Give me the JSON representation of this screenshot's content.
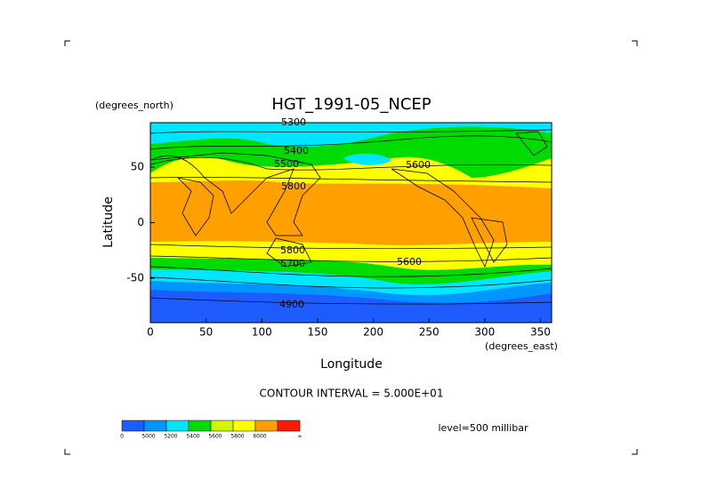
{
  "title": "HGT_1991-05_NCEP",
  "y_axis": {
    "unit": "(degrees_north)",
    "label": "Latitude",
    "ticks": [
      50,
      0,
      -50
    ]
  },
  "x_axis": {
    "unit": "(degrees_east)",
    "label": "Longitude",
    "ticks": [
      0,
      50,
      100,
      150,
      200,
      250,
      300,
      350
    ]
  },
  "contour_interval": "CONTOUR INTERVAL = 5.000E+01",
  "level": "level=500 millibar",
  "contour_labels": [
    5300,
    5400,
    5500,
    5600,
    5800,
    5800,
    5700,
    5600,
    4900
  ],
  "colorbar": {
    "labels": [
      "0",
      "5000",
      "5200",
      "5400",
      "5600",
      "5800",
      "6000",
      "∞"
    ],
    "colors": [
      "#1e5cff",
      "#0096ff",
      "#00e6ff",
      "#00dc00",
      "#d2f500",
      "#ffff00",
      "#ffa000",
      "#ff1a00"
    ]
  }
}
